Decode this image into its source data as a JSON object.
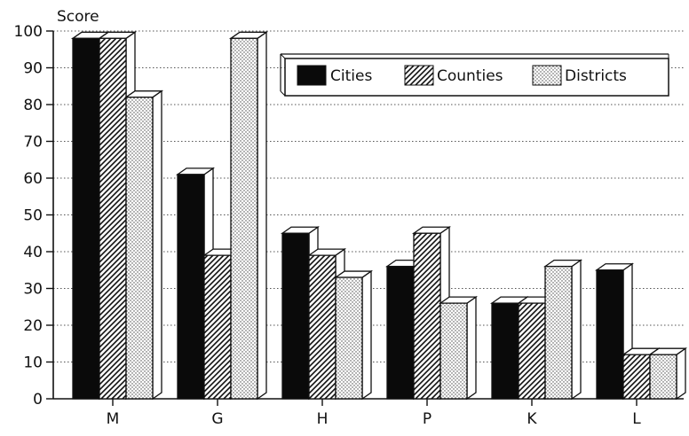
{
  "chart_data": {
    "type": "bar",
    "ylabel": "Score",
    "ylim": [
      0,
      100
    ],
    "yticks": [
      0,
      10,
      20,
      30,
      40,
      50,
      60,
      70,
      80,
      90,
      100
    ],
    "categories": [
      "M",
      "G",
      "H",
      "P",
      "K",
      "L"
    ],
    "series": [
      {
        "name": "Cities",
        "pattern": "solid",
        "values": [
          98,
          61,
          45,
          36,
          26,
          35
        ]
      },
      {
        "name": "Counties",
        "pattern": "hatch",
        "values": [
          98,
          39,
          39,
          45,
          26,
          12
        ]
      },
      {
        "name": "Districts",
        "pattern": "dots",
        "values": [
          82,
          98,
          33,
          26,
          36,
          12
        ]
      }
    ],
    "grid": true,
    "grid_style": "dotted horizontal",
    "legend_position": "top-right",
    "bar_style": "3d",
    "colors": {
      "solid": "#0a0a0a",
      "stroke": "#111111",
      "background": "#ffffff"
    }
  }
}
